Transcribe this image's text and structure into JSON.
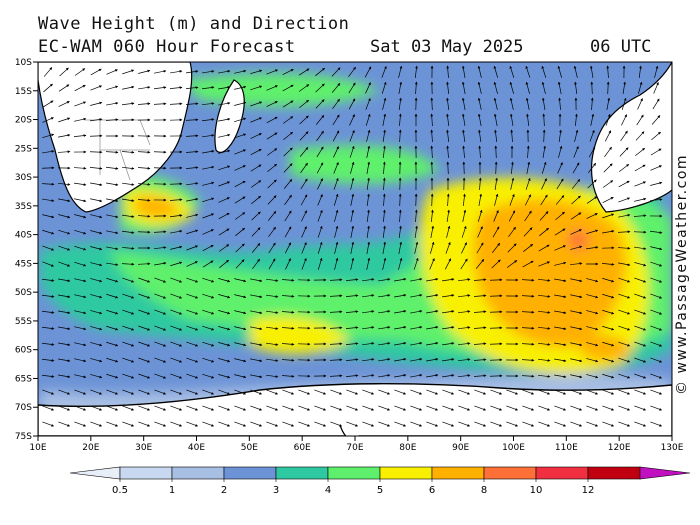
{
  "header": {
    "title": "Wave Height (m) and Direction",
    "model": "EC-WAM 060 Hour Forecast",
    "date": "Sat 03 May 2025",
    "time": "06 UTC"
  },
  "credit": "© www.PassageWeather.com",
  "axes": {
    "lat_labels": [
      "10S",
      "15S",
      "20S",
      "25S",
      "30S",
      "35S",
      "40S",
      "45S",
      "50S",
      "55S",
      "60S",
      "65S",
      "70S",
      "75S"
    ],
    "lon_labels": [
      "10E",
      "20E",
      "30E",
      "40E",
      "50E",
      "60E",
      "70E",
      "80E",
      "90E",
      "100E",
      "110E",
      "120E",
      "130E"
    ]
  },
  "colorbar": {
    "labels": [
      "0.5",
      "1",
      "2",
      "3",
      "4",
      "5",
      "6",
      "8",
      "10",
      "12"
    ],
    "colors": [
      "#e8eef8",
      "#c8d8f0",
      "#a8bfe4",
      "#6c93d6",
      "#2ec9a0",
      "#5ef06c",
      "#f8f000",
      "#ffb000",
      "#ff7038",
      "#f03040",
      "#c00010",
      "#c010c0"
    ]
  },
  "map_colors": {
    "land": "#ffffff",
    "ice": "#ffffff",
    "coast": "#000000"
  }
}
